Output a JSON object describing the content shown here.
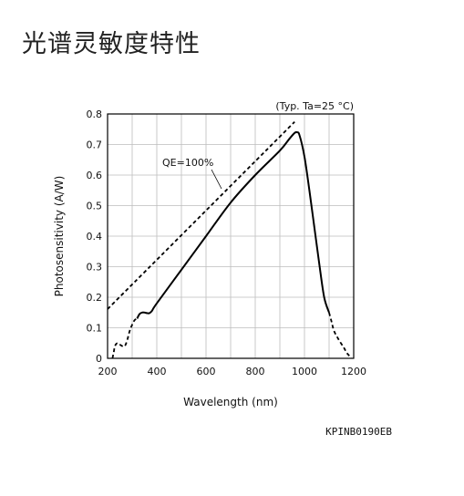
{
  "page": {
    "title": "光谱灵敏度特性"
  },
  "chart_data": {
    "type": "line",
    "xlabel": "Wavelength (nm)",
    "ylabel": "Photosensitivity (A/W)",
    "xlim": [
      200,
      1200
    ],
    "ylim": [
      0,
      0.8
    ],
    "x_ticks": [
      "200",
      "400",
      "600",
      "800",
      "1000",
      "1200"
    ],
    "y_ticks": [
      "0",
      "0.1",
      "0.2",
      "0.3",
      "0.4",
      "0.5",
      "0.6",
      "0.7",
      "0.8"
    ],
    "grid": true,
    "condition_note": "(Typ. Ta=25 °C)",
    "figure_code": "KPINB0190EB",
    "series": [
      {
        "style": "solid",
        "x": [
          320,
          330,
          340,
          350,
          360,
          370,
          380,
          400,
          500,
          600,
          700,
          800,
          900,
          940,
          960,
          970,
          980,
          1000,
          1020,
          1040,
          1060,
          1080,
          1100
        ],
        "y": [
          0.13,
          0.145,
          0.15,
          0.15,
          0.148,
          0.148,
          0.155,
          0.18,
          0.29,
          0.4,
          0.51,
          0.6,
          0.68,
          0.72,
          0.738,
          0.74,
          0.73,
          0.66,
          0.55,
          0.43,
          0.31,
          0.2,
          0.15
        ]
      },
      {
        "style": "dashed",
        "x": [
          220,
          225,
          230,
          240,
          250,
          260,
          270,
          280,
          290,
          300,
          310,
          320
        ],
        "y": [
          0.0,
          0.02,
          0.04,
          0.05,
          0.045,
          0.04,
          0.04,
          0.06,
          0.09,
          0.11,
          0.125,
          0.13
        ]
      },
      {
        "style": "dashed",
        "x": [
          1100,
          1110,
          1120,
          1140,
          1160,
          1170,
          1180,
          1190
        ],
        "y": [
          0.15,
          0.12,
          0.09,
          0.06,
          0.035,
          0.02,
          0.01,
          0.0
        ]
      },
      {
        "name": "QE=100%",
        "style": "dashed",
        "x": [
          200,
          960
        ],
        "y": [
          0.1613,
          0.7742
        ]
      }
    ]
  }
}
